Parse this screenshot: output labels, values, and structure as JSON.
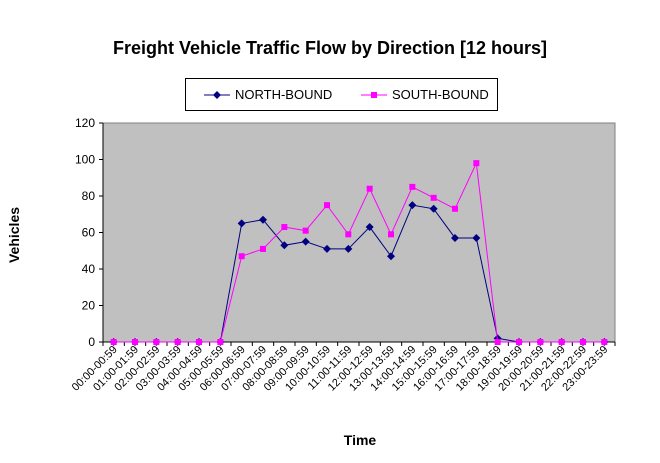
{
  "chart_data": {
    "type": "line",
    "title": "Freight Vehicle Traffic Flow by Direction [12 hours]",
    "xlabel": "Time",
    "ylabel": "Vehicles",
    "ylim": [
      0,
      120
    ],
    "yticks": [
      0,
      20,
      40,
      60,
      80,
      100,
      120
    ],
    "grid": false,
    "legend_position": "top",
    "plot_background": "#c0c0c0",
    "categories": [
      "00:00-00:59",
      "01:00-01:59",
      "02:00-02:59",
      "03:00-03:59",
      "04:00-04:59",
      "05:00-05:59",
      "06:00-06:59",
      "07:00-07:59",
      "08:00-08:59",
      "09:00-09:59",
      "10:00-10:59",
      "11:00-11:59",
      "12:00-12:59",
      "13:00-13:59",
      "14:00-14:59",
      "15:00-15:59",
      "16:00-16:59",
      "17:00-17:59",
      "18:00-18:59",
      "19:00-19:59",
      "20:00-20:59",
      "21:00-21:59",
      "22:00-22:59",
      "23:00-23:59"
    ],
    "series": [
      {
        "name": "NORTH-BOUND",
        "color": "#000080",
        "marker": "diamond",
        "values": [
          0,
          0,
          0,
          0,
          0,
          0,
          65,
          67,
          53,
          55,
          51,
          51,
          63,
          47,
          75,
          73,
          57,
          57,
          2,
          0,
          0,
          0,
          0,
          0
        ]
      },
      {
        "name": "SOUTH-BOUND",
        "color": "#ff00ff",
        "marker": "square",
        "values": [
          0,
          0,
          0,
          0,
          0,
          0,
          47,
          51,
          63,
          61,
          75,
          59,
          84,
          59,
          85,
          79,
          73,
          98,
          0,
          0,
          0,
          0,
          0,
          0
        ]
      }
    ]
  }
}
